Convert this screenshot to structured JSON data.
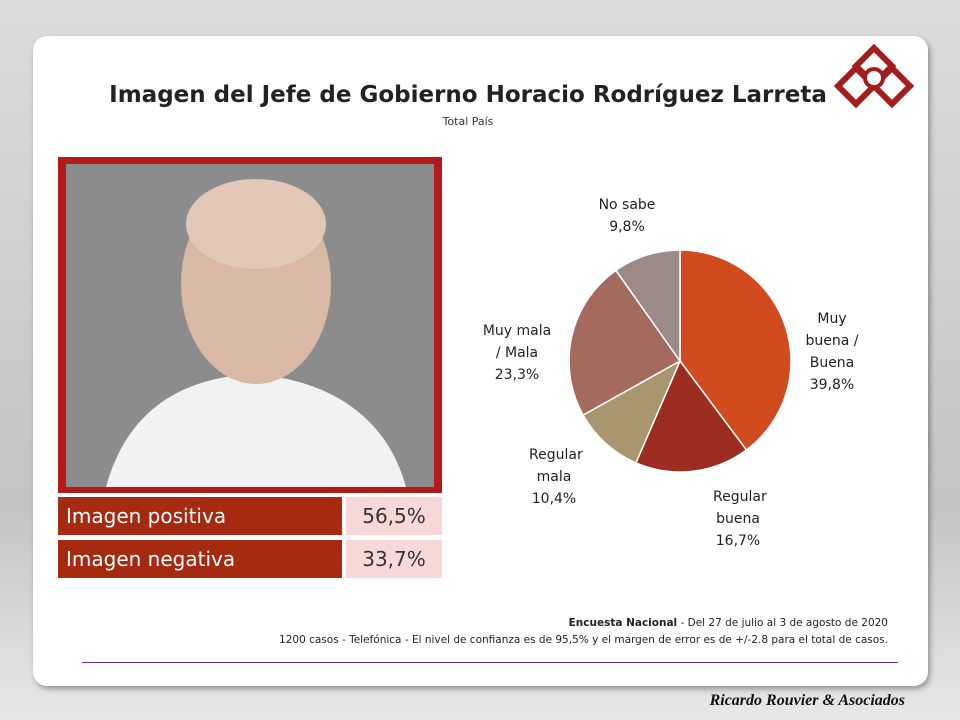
{
  "chart_data": {
    "type": "pie",
    "title": "Imagen del Jefe de Gobierno Horacio Rodríguez Larreta",
    "subtitle": "Total País",
    "categories": [
      "Muy buena / Buena",
      "Regular buena",
      "Regular mala",
      "Muy mala / Mala",
      "No sabe"
    ],
    "values": [
      39.8,
      16.7,
      10.4,
      23.3,
      9.8
    ],
    "value_labels": [
      "39,8%",
      "16,7%",
      "10,4%",
      "23,3%",
      "9,8%"
    ],
    "colors": [
      "#d14b1f",
      "#9c2b20",
      "#a8966f",
      "#a46a5e",
      "#9c8a88"
    ]
  },
  "summary_table": {
    "rows": [
      [
        "Imagen positiva",
        "56,5%"
      ],
      [
        "Imagen negativa",
        "33,7%"
      ]
    ]
  },
  "footer": {
    "survey": "Encuesta Nacional",
    "dates": " - Del 27 de julio al 3 de agosto de 2020",
    "method": "1200 casos - Telefónica  - El nivel de confianza es de 95,5% y el margen de error es de +/-2.8 para el total de casos."
  },
  "brand": "Ricardo Rouvier & Asociados"
}
